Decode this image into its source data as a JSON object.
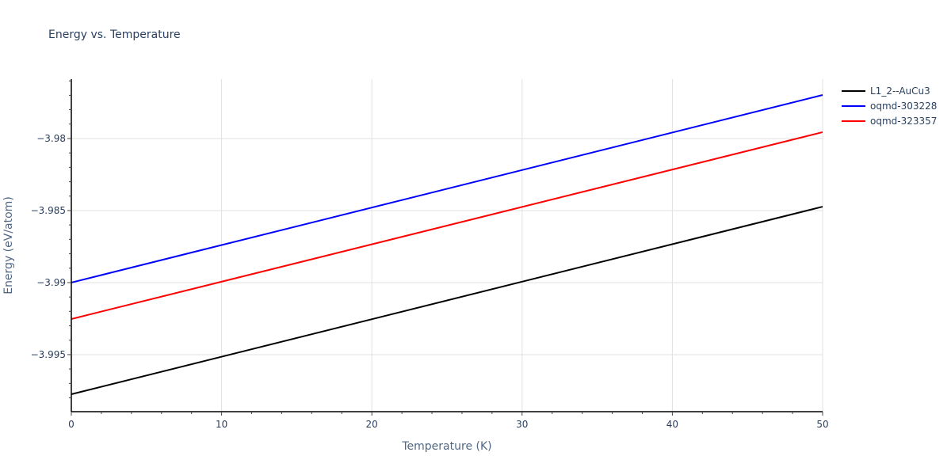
{
  "chart_data": {
    "type": "line",
    "title": "Energy vs. Temperature",
    "xlabel": "Temperature (K)",
    "ylabel": "Energy (eV/atom)",
    "xlim": [
      0,
      50
    ],
    "ylim": [
      -3.99896,
      -3.97588
    ],
    "x_ticks": [
      0,
      10,
      20,
      30,
      40,
      50
    ],
    "x_tick_labels": [
      "0",
      "10",
      "20",
      "30",
      "40",
      "50"
    ],
    "y_ticks": [
      -3.98,
      -3.985,
      -3.99,
      -3.995
    ],
    "y_tick_labels": [
      "−3.98",
      "−3.985",
      "−3.99",
      "−3.995"
    ],
    "grid": true,
    "legend_position": "right-top",
    "x": [
      0,
      50
    ],
    "series": [
      {
        "name": "L1_2--AuCu3",
        "color": "#000000",
        "values": [
          -3.99775,
          -3.98473
        ]
      },
      {
        "name": "oqmd-303228",
        "color": "#0000ff",
        "values": [
          -3.99,
          -3.97698
        ]
      },
      {
        "name": "oqmd-323357",
        "color": "#ff0000",
        "values": [
          -3.99253,
          -3.97956
        ]
      }
    ]
  }
}
